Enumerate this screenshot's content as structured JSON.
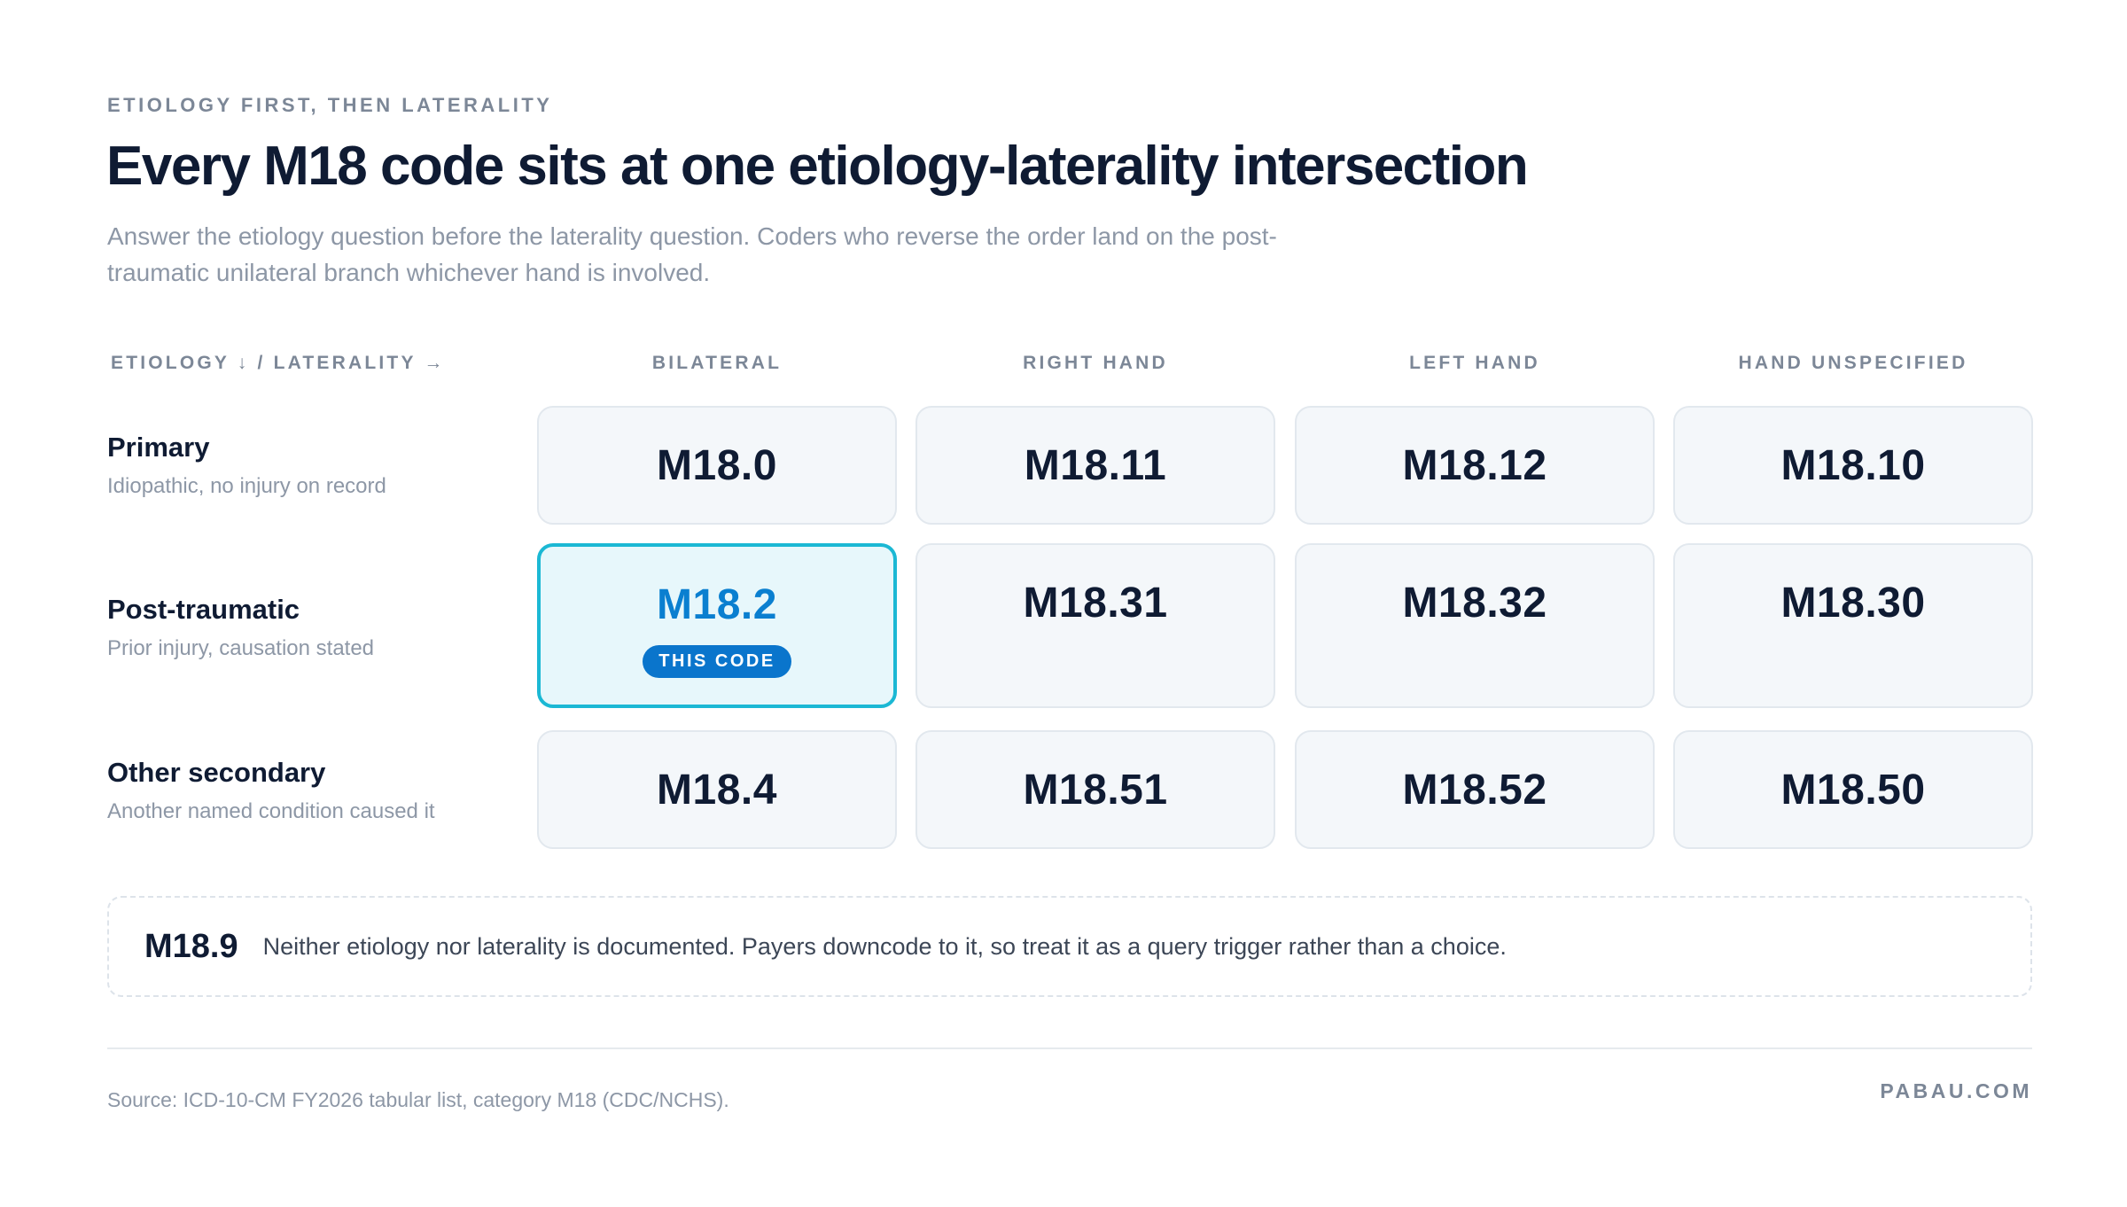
{
  "eyebrow": "ETIOLOGY FIRST, THEN LATERALITY",
  "title": "Every M18 code sits at one etiology-laterality intersection",
  "subtitle": "Answer the etiology question before the laterality question. Coders who reverse the order land on the post-traumatic unilateral branch whichever hand is involved.",
  "axis_label": "ETIOLOGY ↓ / LATERALITY →",
  "columns": [
    "BILATERAL",
    "RIGHT HAND",
    "LEFT HAND",
    "HAND UNSPECIFIED"
  ],
  "rows": [
    {
      "name": "Primary",
      "description": "Idiopathic, no injury on record",
      "codes": [
        "M18.0",
        "M18.11",
        "M18.12",
        "M18.10"
      ]
    },
    {
      "name": "Post-traumatic",
      "description": "Prior injury, causation stated",
      "codes": [
        "M18.2",
        "M18.31",
        "M18.32",
        "M18.30"
      ]
    },
    {
      "name": "Other secondary",
      "description": "Another named condition caused it",
      "codes": [
        "M18.4",
        "M18.51",
        "M18.52",
        "M18.50"
      ]
    }
  ],
  "highlight": {
    "code": "M18.2",
    "badge": "THIS CODE",
    "color": "#1bb8d4",
    "badge_color": "#0a75cc"
  },
  "unspecified": {
    "code": "M18.9",
    "text": "Neither etiology nor laterality is documented. Payers downcode to it, so treat it as a query trigger rather than a choice."
  },
  "footer": {
    "source": "Source: ICD-10-CM FY2026 tabular list, category M18 (CDC/NCHS).",
    "brand": "PABAU.COM"
  }
}
